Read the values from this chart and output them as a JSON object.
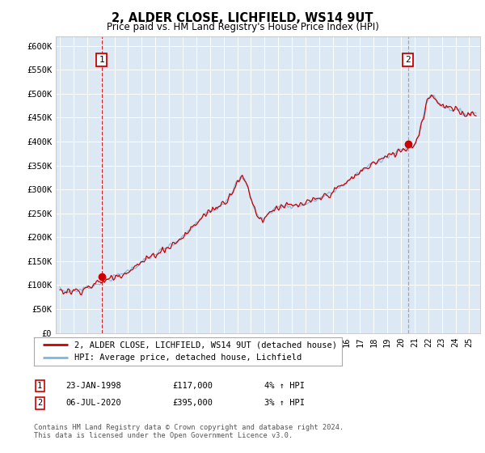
{
  "title": "2, ALDER CLOSE, LICHFIELD, WS14 9UT",
  "subtitle": "Price paid vs. HM Land Registry's House Price Index (HPI)",
  "ylim": [
    0,
    620000
  ],
  "xlim_start": 1995.0,
  "xlim_end": 2025.5,
  "bg_color": "#dce9f5",
  "sale1_date": 1998.07,
  "sale1_price": 117000,
  "sale2_date": 2020.51,
  "sale2_price": 395000,
  "legend_line1": "2, ALDER CLOSE, LICHFIELD, WS14 9UT (detached house)",
  "legend_line2": "HPI: Average price, detached house, Lichfield",
  "table_row1": [
    "1",
    "23-JAN-1998",
    "£117,000",
    "4% ↑ HPI"
  ],
  "table_row2": [
    "2",
    "06-JUL-2020",
    "£395,000",
    "3% ↑ HPI"
  ],
  "footnote": "Contains HM Land Registry data © Crown copyright and database right 2024.\nThis data is licensed under the Open Government Licence v3.0.",
  "hpi_color": "#7ab8e0",
  "price_color": "#cc0000",
  "sale_marker_color": "#cc0000",
  "sale1_vline_color": "#cc0000",
  "sale2_vline_color": "#999999",
  "box_edge_color": "#cc0000"
}
